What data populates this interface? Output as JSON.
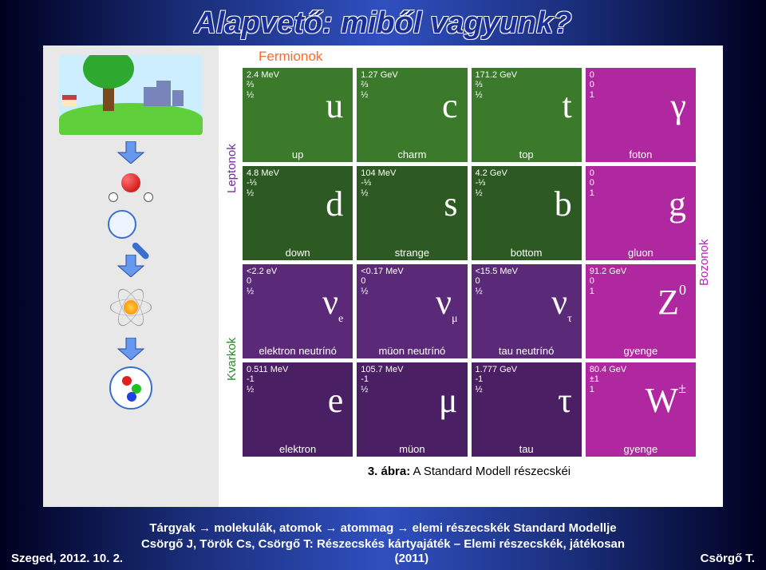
{
  "title": "Alapvető: miből vagyunk?",
  "fermion_label": "Fermionok",
  "side_labels": {
    "kvarkok": "Kvarkok",
    "leptonok": "Leptonok",
    "bozonok": "Bozonok"
  },
  "tiles": [
    {
      "mass": "2.4 MeV",
      "q": "⅔",
      "s": "½",
      "sym": "u",
      "name": "up",
      "cls": "green"
    },
    {
      "mass": "1.27 GeV",
      "q": "⅔",
      "s": "½",
      "sym": "c",
      "name": "charm",
      "cls": "green"
    },
    {
      "mass": "171.2 GeV",
      "q": "⅔",
      "s": "½",
      "sym": "t",
      "name": "top",
      "cls": "green"
    },
    {
      "mass": "0",
      "q": "0",
      "s": "1",
      "sym": "γ",
      "name": "foton",
      "cls": "magenta"
    },
    {
      "mass": "4.8 MeV",
      "q": "-⅓",
      "s": "½",
      "sym": "d",
      "name": "down",
      "cls": "dgreen"
    },
    {
      "mass": "104 MeV",
      "q": "-⅓",
      "s": "½",
      "sym": "s",
      "name": "strange",
      "cls": "dgreen"
    },
    {
      "mass": "4.2 GeV",
      "q": "-⅓",
      "s": "½",
      "sym": "b",
      "name": "bottom",
      "cls": "dgreen"
    },
    {
      "mass": "0",
      "q": "0",
      "s": "1",
      "sym": "g",
      "name": "gluon",
      "cls": "magenta"
    },
    {
      "mass": "<2.2 eV",
      "q": "0",
      "s": "½",
      "sym": "νe",
      "sub": "e",
      "name": "elektron neutrínó",
      "cls": "purple"
    },
    {
      "mass": "<0.17 MeV",
      "q": "0",
      "s": "½",
      "sym": "νμ",
      "sub": "μ",
      "name": "müon neutrínó",
      "cls": "purple"
    },
    {
      "mass": "<15.5 MeV",
      "q": "0",
      "s": "½",
      "sym": "ντ",
      "sub": "τ",
      "name": "tau neutrínó",
      "cls": "purple"
    },
    {
      "mass": "91.2 GeV",
      "q": "0",
      "s": "1",
      "sym": "Z",
      "sup": "0",
      "name": "gyenge",
      "cls": "magenta"
    },
    {
      "mass": "0.511 MeV",
      "q": "-1",
      "s": "½",
      "sym": "e",
      "name": "elektron",
      "cls": "dpurple"
    },
    {
      "mass": "105.7 MeV",
      "q": "-1",
      "s": "½",
      "sym": "μ",
      "name": "müon",
      "cls": "dpurple"
    },
    {
      "mass": "1.777 GeV",
      "q": "-1",
      "s": "½",
      "sym": "τ",
      "name": "tau",
      "cls": "dpurple"
    },
    {
      "mass": "80.4 GeV",
      "q": "±1",
      "s": "1",
      "sym": "W",
      "sup": "±",
      "name": "gyenge",
      "cls": "magenta"
    }
  ],
  "caption_bold": "3. ábra:",
  "caption_text": " A Standard Modell részecskéi",
  "desc_line1": "Tárgyak → molekulák, atomok → atommag → elemi részecskék Standard Modellje",
  "desc_line2": "Csörgő J, Török Cs, Csörgő T: Részecskés kártyajáték – Elemi részecskék, játékosan",
  "footer_left": "Szeged, 2012. 10. 2.",
  "footer_center": "(2011)",
  "footer_right": "Csörgő T.",
  "colors": {
    "title": "#1a2e9a",
    "fermion": "#ff6a2a",
    "kvarkok": "#2a8a2a",
    "leptonok": "#7a2aa0",
    "bozonok": "#c020c0",
    "green": "#3a7a2a",
    "dgreen": "#2d5a22",
    "purple": "#5a2a78",
    "dpurple": "#4a1f63",
    "magenta": "#b028a0"
  }
}
